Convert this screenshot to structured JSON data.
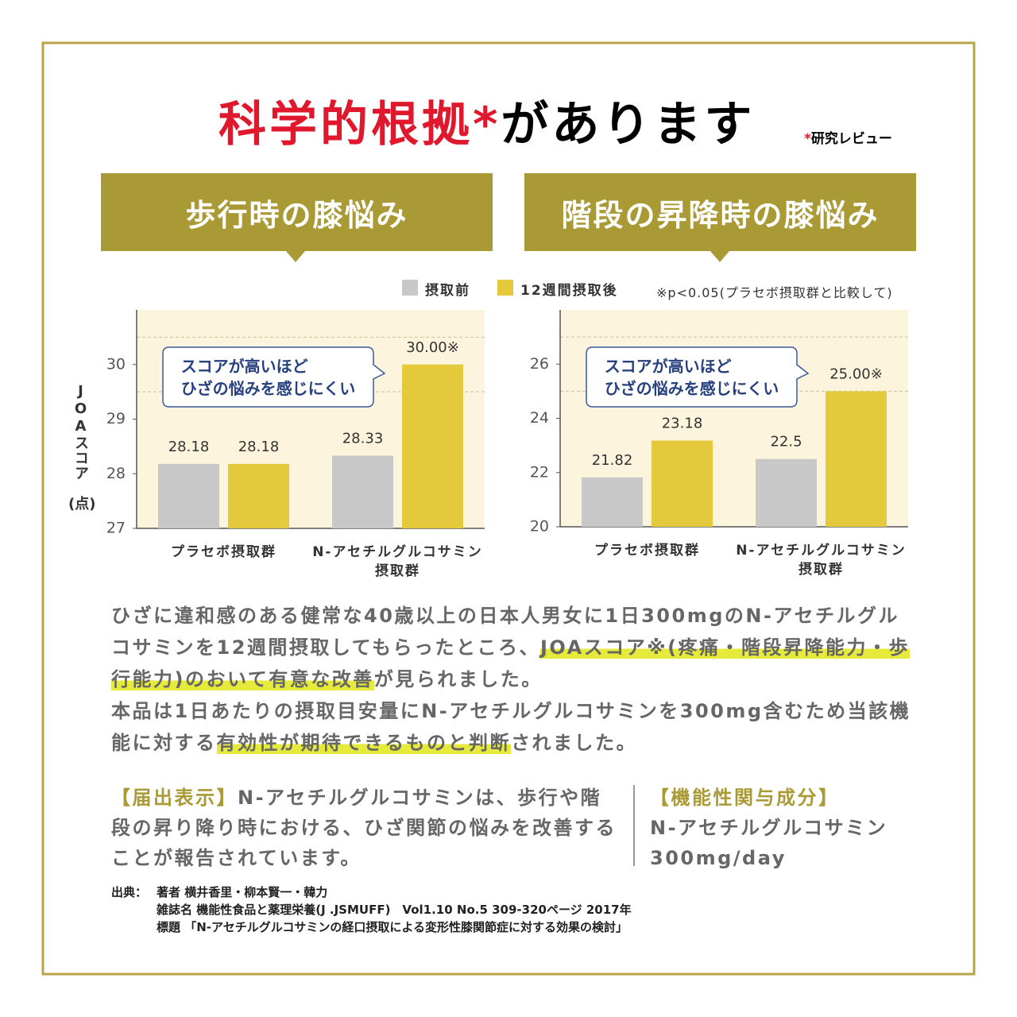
{
  "header": {
    "title_main": "科学的根拠",
    "title_mark": "*",
    "title_rest": "があります",
    "note_mark": "*",
    "note": "研究レビュー"
  },
  "significance_note": "※p<0.05(プラセボ摂取群と比較して)",
  "chart_data": [
    {
      "type": "bar",
      "title": "歩行時の膝悩み",
      "ylabel": "JOAスコア",
      "yunit": "(点)",
      "annotation": "スコアが高いほど\nひざの悩みを感じにくい",
      "categories": [
        "プラセボ摂取群",
        "N-アセチルグルコサミン\n摂取群"
      ],
      "series": [
        {
          "name": "摂取前",
          "color": "#c8c8c8",
          "values": [
            28.18,
            28.33
          ],
          "value_labels": [
            "28.18",
            "28.33"
          ]
        },
        {
          "name": "12週間摂取後",
          "color": "#e5c93c",
          "values": [
            28.18,
            30.0
          ],
          "value_labels": [
            "28.18",
            "30.00※"
          ]
        }
      ],
      "ylim": [
        27,
        31
      ],
      "yticks": [
        27,
        28,
        29,
        30
      ],
      "minor_grid": [
        29.5,
        30.5
      ]
    },
    {
      "type": "bar",
      "title": "階段の昇降時の膝悩み",
      "annotation": "スコアが高いほど\nひざの悩みを感じにくい",
      "categories": [
        "プラセボ摂取群",
        "N-アセチルグルコサミン\n摂取群"
      ],
      "series": [
        {
          "name": "摂取前",
          "color": "#c8c8c8",
          "values": [
            21.82,
            22.5
          ],
          "value_labels": [
            "21.82",
            "22.5"
          ]
        },
        {
          "name": "12週間摂取後",
          "color": "#e5c93c",
          "values": [
            23.18,
            25.0
          ],
          "value_labels": [
            "23.18",
            "25.00※"
          ]
        }
      ],
      "ylim": [
        20,
        28
      ],
      "yticks": [
        20,
        22,
        24,
        26
      ],
      "minor_grid": [
        25,
        27
      ]
    }
  ],
  "body": [
    {
      "segments": [
        {
          "text": "ひざに違和感のある健常な40歳以上の日本人男女に1日300mgのN-アセチルグルコサミンを12週間摂取してもらったところ、",
          "highlight": false
        },
        {
          "text": "JOAスコア※(疼痛・階段昇降能力・歩行能力)のおいて有意な改善",
          "highlight": true
        },
        {
          "text": "が見られました。",
          "highlight": false
        }
      ]
    },
    {
      "segments": [
        {
          "text": "本品は1日あたりの摂取目安量にN-アセチルグルコサミンを300mg含むため当該機能に対する",
          "highlight": false
        },
        {
          "text": "有効性が期待できるものと判断",
          "highlight": true
        },
        {
          "text": "されました。",
          "highlight": false
        }
      ]
    }
  ],
  "claim": {
    "label": "【届出表示】",
    "text": "N-アセチルグルコサミンは、歩行や階段の昇り降り時における、ひざ関節の悩みを改善することが報告されています。"
  },
  "ingredient": {
    "label": "【機能性関与成分】",
    "name": "N-アセチルグルコサミン",
    "amount": "300mg/day"
  },
  "source": {
    "label": "出典：",
    "lines": [
      "著者 横井香里・柳本賢一・韓力",
      "雑誌名 機能性食品と薬理栄養(J .JSMUFF)　Vol1.10 No.5 309-320ページ 2017年",
      "標題 「N-アセチルグルコサミンの経口摂取による変形性膝関節症に対する効果の検討」"
    ]
  }
}
